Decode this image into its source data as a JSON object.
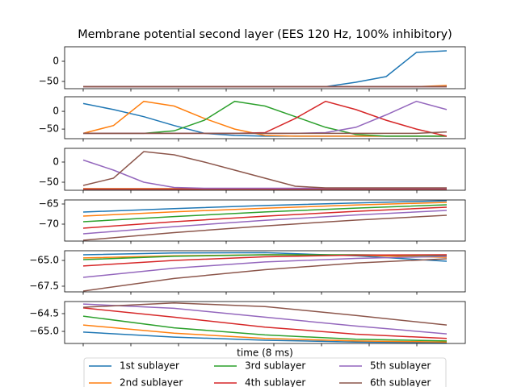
{
  "chart_data": [
    {
      "type": "line",
      "title": "Membrane potential second layer (EES 120 Hz, 100% inhibitory)",
      "ylim": [
        -68,
        36
      ],
      "yticks": [
        0,
        {
          "value": -50,
          "label": "−50"
        }
      ],
      "series": [
        {
          "color": "#1f77b4",
          "values": [
            -63,
            -63,
            -63,
            -63,
            -63,
            -63,
            -63,
            -63,
            -63,
            -52,
            -38,
            22,
            26
          ]
        },
        {
          "color": "#ff7f0e",
          "values": [
            -63,
            -63,
            -63,
            -63,
            -63,
            -63,
            -63,
            -63,
            -63,
            -63,
            -63,
            -63,
            -60
          ]
        },
        {
          "color": "#2ca02c",
          "values": [
            -63,
            -63,
            -63,
            -63,
            -63,
            -63,
            -63,
            -63,
            -63,
            -63,
            -63,
            -63,
            -63
          ]
        },
        {
          "color": "#d62728",
          "values": [
            -63,
            -63,
            -63,
            -63,
            -63,
            -63,
            -63,
            -63,
            -63,
            -63,
            -63,
            -63,
            -63
          ]
        },
        {
          "color": "#9467bd",
          "values": [
            -63,
            -63,
            -63,
            -63,
            -63,
            -63,
            -63,
            -63,
            -63,
            -63,
            -63,
            -63,
            -63
          ]
        },
        {
          "color": "#8c564b",
          "values": [
            -63,
            -63,
            -63,
            -63,
            -63,
            -63,
            -63,
            -63,
            -63,
            -63,
            -63,
            -63,
            -63
          ]
        }
      ]
    },
    {
      "type": "line",
      "ylim": [
        -77,
        41
      ],
      "yticks": [
        0,
        {
          "value": -50,
          "label": "−50"
        }
      ],
      "series": [
        {
          "color": "#1f77b4",
          "values": [
            22,
            5,
            -15,
            -40,
            -62,
            -68,
            -70,
            -70,
            -70,
            -70,
            -70,
            -70,
            -70
          ]
        },
        {
          "color": "#ff7f0e",
          "values": [
            -62,
            -40,
            28,
            15,
            -20,
            -50,
            -68,
            -70,
            -70,
            -70,
            -70,
            -70,
            -70
          ]
        },
        {
          "color": "#2ca02c",
          "values": [
            -62,
            -62,
            -62,
            -55,
            -25,
            28,
            15,
            -15,
            -45,
            -65,
            -70,
            -70,
            -70
          ]
        },
        {
          "color": "#d62728",
          "values": [
            -62,
            -62,
            -62,
            -62,
            -62,
            -62,
            -60,
            -20,
            28,
            5,
            -25,
            -50,
            -70
          ]
        },
        {
          "color": "#9467bd",
          "values": [
            -62,
            -62,
            -62,
            -62,
            -62,
            -62,
            -62,
            -62,
            -60,
            -45,
            -10,
            28,
            5
          ]
        },
        {
          "color": "#8c564b",
          "values": [
            -62,
            -62,
            -62,
            -62,
            -62,
            -62,
            -62,
            -62,
            -62,
            -62,
            -62,
            -62,
            -58
          ]
        }
      ]
    },
    {
      "type": "line",
      "ylim": [
        -70,
        34
      ],
      "yticks": [
        0,
        {
          "value": -50,
          "label": "−50"
        }
      ],
      "series": [
        {
          "color": "#1f77b4",
          "values": [
            -67,
            -67,
            -67,
            -67,
            -67,
            -67,
            -67,
            -67,
            -67,
            -67,
            -67,
            -67,
            -67
          ]
        },
        {
          "color": "#ff7f0e",
          "values": [
            -66,
            -66,
            -66,
            -66,
            -66,
            -66,
            -66,
            -66,
            -66,
            -66,
            -66,
            -66,
            -66
          ]
        },
        {
          "color": "#2ca02c",
          "values": [
            -67,
            -67,
            -67,
            -67,
            -67,
            -67,
            -67,
            -67,
            -67,
            -67,
            -67,
            -67,
            -67
          ]
        },
        {
          "color": "#d62728",
          "values": [
            -67,
            -67,
            -67,
            -67,
            -67,
            -67,
            -67,
            -67,
            -67,
            -67,
            -67,
            -67,
            -67
          ]
        },
        {
          "color": "#9467bd",
          "values": [
            5,
            -20,
            -50,
            -63,
            -65,
            -65,
            -65,
            -65,
            -65,
            -65,
            -65,
            -65,
            -65
          ]
        },
        {
          "color": "#8c564b",
          "values": [
            -58,
            -40,
            26,
            18,
            0,
            -20,
            -40,
            -60,
            -64,
            -64,
            -64,
            -64,
            -64
          ]
        }
      ]
    },
    {
      "type": "line",
      "ylim": [
        -74.2,
        -64
      ],
      "yticks": [
        {
          "value": -65,
          "label": "−65"
        },
        {
          "value": -70,
          "label": "−70"
        }
      ],
      "series": [
        {
          "color": "#1f77b4",
          "values": [
            -67,
            -66.14,
            -65.39,
            -64.74,
            -64.2
          ]
        },
        {
          "color": "#ff7f0e",
          "values": [
            -68,
            -66.96,
            -66.04,
            -65.26,
            -64.6
          ]
        },
        {
          "color": "#2ca02c",
          "values": [
            -69.4,
            -68.11,
            -66.98,
            -66.01,
            -65.2
          ]
        },
        {
          "color": "#d62728",
          "values": [
            -71,
            -69.41,
            -68.01,
            -66.81,
            -65.8
          ]
        },
        {
          "color": "#9467bd",
          "values": [
            -72.4,
            -70.63,
            -69.06,
            -67.72,
            -66.6
          ]
        },
        {
          "color": "#8c564b",
          "values": [
            -74,
            -72.1,
            -70.43,
            -69,
            -67.8
          ]
        }
      ]
    },
    {
      "type": "line",
      "ylim": [
        -68.05,
        -64.06
      ],
      "yticks": [
        {
          "value": -65,
          "label": "−65.0"
        },
        {
          "value": -67.5,
          "label": "−67.5"
        }
      ],
      "series": [
        {
          "color": "#1f77b4",
          "values": [
            -64.45,
            -64.27,
            -64.25,
            -64.55,
            -65.08
          ]
        },
        {
          "color": "#ff7f0e",
          "values": [
            -64.76,
            -64.55,
            -64.45,
            -64.5,
            -64.69
          ]
        },
        {
          "color": "#2ca02c",
          "values": [
            -64.92,
            -64.6,
            -64.45,
            -64.45,
            -64.53
          ]
        },
        {
          "color": "#d62728",
          "values": [
            -65.54,
            -65,
            -64.65,
            -64.48,
            -64.45
          ]
        },
        {
          "color": "#9467bd",
          "values": [
            -66.64,
            -65.75,
            -65.15,
            -64.8,
            -64.6
          ]
        },
        {
          "color": "#8c564b",
          "values": [
            -67.97,
            -66.75,
            -65.9,
            -65.25,
            -64.84
          ]
        }
      ]
    },
    {
      "type": "line",
      "ylim": [
        -65.34,
        -64.16
      ],
      "yticks": [
        {
          "value": -64.5,
          "label": "−64.5"
        },
        {
          "value": -65,
          "label": "−65.0"
        }
      ],
      "xlabel": "time (8 ms)",
      "series": [
        {
          "name": "1st sublayer",
          "color": "#1f77b4",
          "values": [
            -65.02,
            -65.16,
            -65.25,
            -65.3,
            -65.32
          ]
        },
        {
          "name": "2nd sublayer",
          "color": "#ff7f0e",
          "values": [
            -64.82,
            -65.05,
            -65.2,
            -65.27,
            -65.3
          ]
        },
        {
          "name": "3rd sublayer",
          "color": "#2ca02c",
          "values": [
            -64.57,
            -64.9,
            -65.1,
            -65.22,
            -65.27
          ]
        },
        {
          "name": "4th sublayer",
          "color": "#d62728",
          "values": [
            -64.34,
            -64.6,
            -64.88,
            -65.08,
            -65.2
          ]
        },
        {
          "name": "5th sublayer",
          "color": "#9467bd",
          "values": [
            -64.23,
            -64.35,
            -64.6,
            -64.85,
            -65.07
          ]
        },
        {
          "name": "6th sublayer",
          "color": "#8c564b",
          "values": [
            -64.32,
            -64.2,
            -64.3,
            -64.55,
            -64.82
          ]
        }
      ]
    }
  ]
}
